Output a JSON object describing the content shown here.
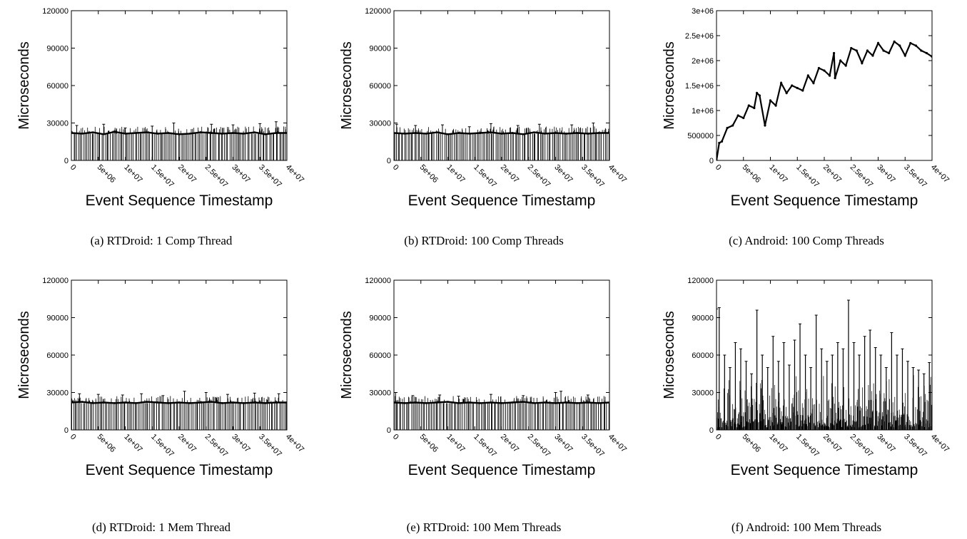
{
  "figures": [
    {
      "caption": "(a) RTDroid: 1 Comp Thread"
    },
    {
      "caption": "(b) RTDroid: 100 Comp Threads"
    },
    {
      "caption": "(c) Android: 100 Comp Threads"
    },
    {
      "caption": "(d) RTDroid: 1 Mem Thread"
    },
    {
      "caption": "(e) RTDroid: 100 Mem Threads"
    },
    {
      "caption": "(f) Android: 100 Mem Threads"
    }
  ],
  "chart_data": [
    {
      "type": "line",
      "title": "",
      "xlabel": "Event Sequence Timestamp",
      "ylabel": "Microseconds",
      "xlim": [
        0,
        40000000
      ],
      "ylim": [
        0,
        120000
      ],
      "x_ticks": [
        "0",
        "5e+06",
        "1e+07",
        "1.5e+07",
        "2e+07",
        "2.5e+07",
        "3e+07",
        "3.5e+07",
        "4e+07"
      ],
      "y_ticks": [
        "0",
        "30000",
        "60000",
        "90000",
        "120000"
      ],
      "pattern": "rtdroid",
      "baseline": 21500,
      "x": [
        0,
        2000000,
        4000000,
        6000000,
        8000000,
        10000000,
        12000000,
        14000000,
        16000000,
        18000000,
        20000000,
        22000000,
        24000000,
        26000000,
        28000000,
        30000000,
        32000000,
        34000000,
        36000000,
        38000000,
        40000000
      ],
      "y": [
        22000,
        21500,
        22500,
        21000,
        23000,
        21500,
        22000,
        22500,
        21500,
        22000,
        21000,
        21500,
        22500,
        22000,
        21500,
        22000,
        21500,
        22500,
        21000,
        22000,
        22000
      ],
      "spikes_x": [
        1000000,
        6000000,
        10000000,
        15000000,
        19000000,
        26000000,
        30000000,
        35000000,
        38000000
      ],
      "spikes_y": [
        28000,
        29000,
        26000,
        27500,
        30000,
        29000,
        28500,
        29500,
        31000
      ]
    },
    {
      "type": "line",
      "title": "",
      "xlabel": "Event Sequence Timestamp",
      "ylabel": "Microseconds",
      "xlim": [
        0,
        40000000
      ],
      "ylim": [
        0,
        120000
      ],
      "x_ticks": [
        "0",
        "5e+06",
        "1e+07",
        "1.5e+07",
        "2e+07",
        "2.5e+07",
        "3e+07",
        "3.5e+07",
        "4e+07"
      ],
      "y_ticks": [
        "0",
        "30000",
        "60000",
        "90000",
        "120000"
      ],
      "pattern": "rtdroid",
      "baseline": 21500,
      "x": [
        0,
        2000000,
        4000000,
        6000000,
        8000000,
        10000000,
        12000000,
        14000000,
        16000000,
        18000000,
        20000000,
        22000000,
        24000000,
        26000000,
        28000000,
        30000000,
        32000000,
        34000000,
        36000000,
        38000000,
        40000000
      ],
      "y": [
        22000,
        21500,
        22000,
        21500,
        22500,
        21000,
        22000,
        21500,
        22000,
        22500,
        21500,
        22000,
        21000,
        22500,
        21500,
        22000,
        21500,
        22000,
        21500,
        22000,
        22000
      ],
      "spikes_x": [
        500000,
        4000000,
        9000000,
        14000000,
        18000000,
        23000000,
        27000000,
        33000000,
        37000000
      ],
      "spikes_y": [
        29000,
        28000,
        28500,
        27000,
        29500,
        28000,
        29000,
        28500,
        30000
      ]
    },
    {
      "type": "line",
      "title": "",
      "xlabel": "Event Sequence Timestamp",
      "ylabel": "Microseconds",
      "xlim": [
        0,
        40000000
      ],
      "ylim": [
        0,
        3000000
      ],
      "x_ticks": [
        "0",
        "5e+06",
        "1e+07",
        "1.5e+07",
        "2e+07",
        "2.5e+07",
        "3e+07",
        "3.5e+07",
        "4e+07"
      ],
      "y_ticks": [
        "0",
        "500000",
        "1e+06",
        "1.5e+06",
        "2e+06",
        "2.5e+06",
        "3e+06"
      ],
      "pattern": "sawtooth",
      "x": [
        0,
        500000,
        1000000,
        2000000,
        3000000,
        4000000,
        5000000,
        6000000,
        7000000,
        7500000,
        8000000,
        9000000,
        10000000,
        11000000,
        12000000,
        13000000,
        14000000,
        15000000,
        16000000,
        17000000,
        18000000,
        19000000,
        20000000,
        21000000,
        21800000,
        22000000,
        23000000,
        24000000,
        25000000,
        26000000,
        27000000,
        28000000,
        29000000,
        30000000,
        31000000,
        32000000,
        33000000,
        34000000,
        35000000,
        36000000,
        37000000,
        38000000,
        39000000,
        40000000
      ],
      "y": [
        0,
        350000,
        380000,
        650000,
        700000,
        900000,
        850000,
        1100000,
        1050000,
        1350000,
        1300000,
        700000,
        1200000,
        1100000,
        1550000,
        1350000,
        1500000,
        1450000,
        1400000,
        1700000,
        1550000,
        1850000,
        1800000,
        1700000,
        2150000,
        1650000,
        2000000,
        1900000,
        2250000,
        2200000,
        1950000,
        2200000,
        2100000,
        2350000,
        2200000,
        2150000,
        2380000,
        2300000,
        2100000,
        2350000,
        2300000,
        2200000,
        2150000,
        2080000
      ]
    },
    {
      "type": "line",
      "title": "",
      "xlabel": "Event Sequence Timestamp",
      "ylabel": "Microseconds",
      "xlim": [
        0,
        40000000
      ],
      "ylim": [
        0,
        120000
      ],
      "x_ticks": [
        "0",
        "5e+06",
        "1e+07",
        "1.5e+07",
        "2e+07",
        "2.5e+07",
        "3e+07",
        "3.5e+07",
        "4e+07"
      ],
      "y_ticks": [
        "0",
        "30000",
        "60000",
        "90000",
        "120000"
      ],
      "pattern": "rtdroid",
      "baseline": 21500,
      "x": [
        0,
        2000000,
        4000000,
        6000000,
        8000000,
        10000000,
        12000000,
        14000000,
        16000000,
        18000000,
        20000000,
        22000000,
        24000000,
        26000000,
        28000000,
        30000000,
        32000000,
        34000000,
        36000000,
        38000000,
        40000000
      ],
      "y": [
        22000,
        22500,
        21500,
        22000,
        21500,
        22000,
        21500,
        22500,
        22000,
        21500,
        22000,
        21500,
        22000,
        22500,
        21500,
        22000,
        21500,
        22000,
        21500,
        22000,
        22000
      ],
      "spikes_x": [
        1500000,
        5000000,
        9500000,
        13000000,
        17000000,
        21000000,
        25000000,
        29000000,
        34000000,
        38500000
      ],
      "spikes_y": [
        29000,
        28500,
        28000,
        29000,
        27500,
        31000,
        30000,
        28500,
        29500,
        29000
      ]
    },
    {
      "type": "line",
      "title": "",
      "xlabel": "Event Sequence Timestamp",
      "ylabel": "Microseconds",
      "xlim": [
        0,
        40000000
      ],
      "ylim": [
        0,
        120000
      ],
      "x_ticks": [
        "0",
        "5e+06",
        "1e+07",
        "1.5e+07",
        "2e+07",
        "2.5e+07",
        "3e+07",
        "3.5e+07",
        "4e+07"
      ],
      "y_ticks": [
        "0",
        "30000",
        "60000",
        "90000",
        "120000"
      ],
      "pattern": "rtdroid",
      "baseline": 21500,
      "x": [
        0,
        2000000,
        4000000,
        6000000,
        8000000,
        10000000,
        12000000,
        14000000,
        16000000,
        18000000,
        20000000,
        22000000,
        24000000,
        26000000,
        28000000,
        30000000,
        32000000,
        34000000,
        36000000,
        38000000,
        40000000
      ],
      "y": [
        22000,
        21500,
        22000,
        21500,
        22000,
        22500,
        21500,
        22000,
        21500,
        22000,
        21500,
        22000,
        22500,
        21500,
        22000,
        21500,
        22000,
        21500,
        22000,
        21500,
        22000
      ],
      "spikes_x": [
        300000,
        3500000,
        8500000,
        12000000,
        18000000,
        24000000,
        30000000,
        31000000,
        36000000
      ],
      "spikes_y": [
        30000,
        27500,
        28000,
        27000,
        28500,
        27500,
        30000,
        31000,
        28000
      ]
    },
    {
      "type": "line",
      "title": "",
      "xlabel": "Event Sequence Timestamp",
      "ylabel": "Microseconds",
      "xlim": [
        0,
        40000000
      ],
      "ylim": [
        0,
        120000
      ],
      "x_ticks": [
        "0",
        "5e+06",
        "1e+07",
        "1.5e+07",
        "2e+07",
        "2.5e+07",
        "3e+07",
        "3.5e+07",
        "4e+07"
      ],
      "y_ticks": [
        "0",
        "30000",
        "60000",
        "90000",
        "120000"
      ],
      "pattern": "android-mem",
      "x": [
        0,
        500000,
        1500000,
        2500000,
        3500000,
        4500000,
        5500000,
        6500000,
        7500000,
        8500000,
        9500000,
        10500000,
        11500000,
        12500000,
        13500000,
        14500000,
        15500000,
        16500000,
        17500000,
        18500000,
        19500000,
        20500000,
        21500000,
        22500000,
        23500000,
        24500000,
        25500000,
        26500000,
        27500000,
        28500000,
        29500000,
        30500000,
        31500000,
        32500000,
        33500000,
        34500000,
        35500000,
        36500000,
        37500000,
        38500000,
        39500000
      ],
      "y": [
        97000,
        98000,
        60000,
        50000,
        70000,
        65000,
        55000,
        45000,
        96000,
        60000,
        50000,
        75000,
        55000,
        70000,
        52000,
        72000,
        85000,
        60000,
        50000,
        92000,
        65000,
        55000,
        60000,
        70000,
        65000,
        104000,
        70000,
        60000,
        75000,
        80000,
        66000,
        60000,
        50000,
        78000,
        60000,
        65000,
        55000,
        50000,
        48000,
        45000,
        54000
      ]
    }
  ]
}
